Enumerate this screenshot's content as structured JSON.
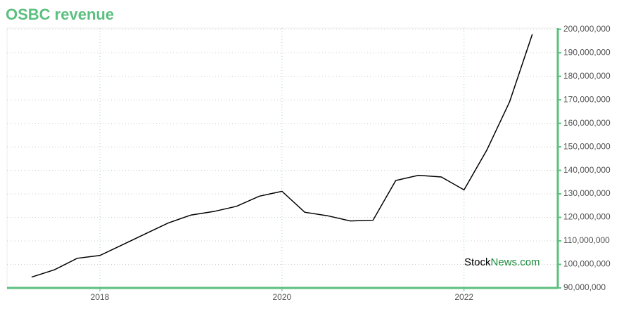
{
  "chart_data": {
    "type": "line",
    "title": "OSBC revenue",
    "watermark": [
      "Stock",
      "News.com"
    ],
    "x": [
      2017.25,
      2017.5,
      2017.75,
      2018,
      2018.25,
      2018.5,
      2018.75,
      2019,
      2019.25,
      2019.5,
      2019.75,
      2020,
      2020.25,
      2020.5,
      2020.75,
      2021,
      2021.25,
      2021.5,
      2021.75,
      2022,
      2022.25,
      2022.5,
      2022.75
    ],
    "series": [
      {
        "name": "OSBC revenue",
        "color": "#000000",
        "values": [
          94600000,
          97700000,
          102600000,
          103800000,
          108400000,
          113000000,
          117600000,
          121000000,
          122500000,
          124700000,
          129000000,
          131100000,
          122200000,
          120700000,
          118500000,
          118800000,
          135700000,
          137900000,
          137200000,
          131700000,
          148600000,
          169100000,
          197900000
        ]
      }
    ],
    "xlim": [
      2016.98,
      2023.03
    ],
    "xticks": [
      2018,
      2020,
      2022
    ],
    "ylim": [
      90000000,
      200500000
    ],
    "yticks": [
      {
        "value": 90000000,
        "label": "90,000,000"
      },
      {
        "value": 100000000,
        "label": "100,000,000"
      },
      {
        "value": 110000000,
        "label": "110,000,000"
      },
      {
        "value": 120000000,
        "label": "120,000,000"
      },
      {
        "value": 130000000,
        "label": "130,000,000"
      },
      {
        "value": 140000000,
        "label": "140,000,000"
      },
      {
        "value": 150000000,
        "label": "150,000,000"
      },
      {
        "value": 160000000,
        "label": "160,000,000"
      },
      {
        "value": 170000000,
        "label": "170,000,000"
      },
      {
        "value": 180000000,
        "label": "180,000,000"
      },
      {
        "value": 190000000,
        "label": "190,000,000"
      },
      {
        "value": 200000000,
        "label": "200,000,000"
      }
    ],
    "grid": true,
    "axis_color": "#5bbf7f"
  }
}
